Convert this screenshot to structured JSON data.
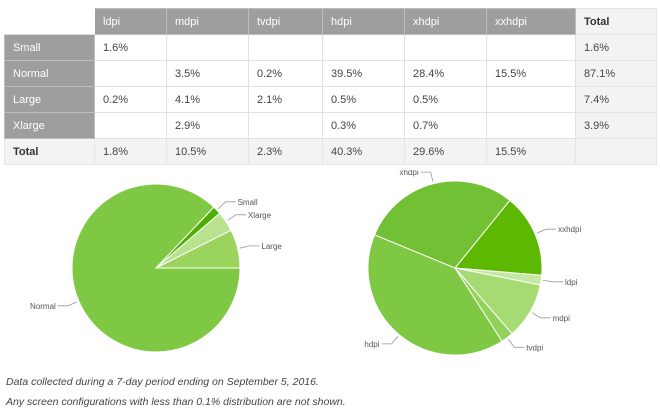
{
  "table": {
    "corner": "",
    "columns": [
      "ldpi",
      "mdpi",
      "tvdpi",
      "hdpi",
      "xhdpi",
      "xxhdpi",
      "Total"
    ],
    "rows": [
      {
        "label": "Small",
        "cells": [
          "1.6%",
          "",
          "",
          "",
          "",
          "",
          "1.6%"
        ]
      },
      {
        "label": "Normal",
        "cells": [
          "",
          "3.5%",
          "0.2%",
          "39.5%",
          "28.4%",
          "15.5%",
          "87.1%"
        ]
      },
      {
        "label": "Large",
        "cells": [
          "0.2%",
          "4.1%",
          "2.1%",
          "0.5%",
          "0.5%",
          "",
          "7.4%"
        ]
      },
      {
        "label": "Xlarge",
        "cells": [
          "",
          "2.9%",
          "",
          "0.3%",
          "0.7%",
          "",
          "3.9%"
        ]
      },
      {
        "label": "Total",
        "cells": [
          "1.8%",
          "10.5%",
          "2.3%",
          "40.3%",
          "29.6%",
          "15.5%",
          ""
        ]
      }
    ]
  },
  "chart_data": [
    {
      "type": "pie",
      "slices": [
        {
          "label": "Normal",
          "value": 87.1,
          "color": "#7fc843"
        },
        {
          "label": "Small",
          "value": 1.6,
          "color": "#4caf00"
        },
        {
          "label": "Xlarge",
          "value": 3.9,
          "color": "#b9e28f"
        },
        {
          "label": "Large",
          "value": 7.4,
          "color": "#9bd45c"
        }
      ]
    },
    {
      "type": "pie",
      "slices": [
        {
          "label": "xxhdpi",
          "value": 15.5,
          "color": "#5cb800"
        },
        {
          "label": "ldpi",
          "value": 1.8,
          "color": "#c5e8a3"
        },
        {
          "label": "mdpi",
          "value": 10.5,
          "color": "#a6db73"
        },
        {
          "label": "tvdpi",
          "value": 2.3,
          "color": "#92d15a"
        },
        {
          "label": "hdpi",
          "value": 40.3,
          "color": "#7fc843"
        },
        {
          "label": "xhdpi",
          "value": 29.6,
          "color": "#72c034"
        }
      ]
    }
  ],
  "notes": [
    "Data collected during a 7-day period ending on September 5, 2016.",
    "Any screen configurations with less than 0.1% distribution are not shown."
  ]
}
